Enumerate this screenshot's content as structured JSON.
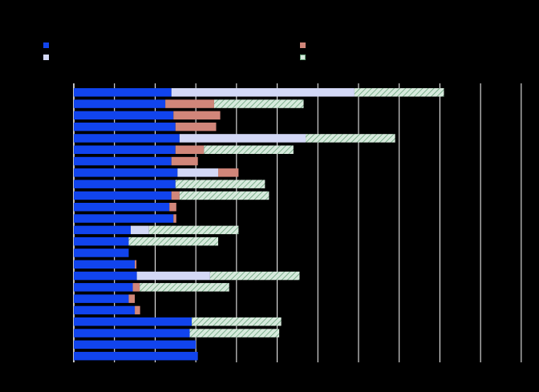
{
  "chart_data": {
    "type": "bar",
    "orientation": "horizontal",
    "stacked": true,
    "title": "",
    "xlabel": "",
    "ylabel": "",
    "grid": "vertical",
    "xlim": [
      0,
      11.2
    ],
    "gridlines": [
      0,
      1,
      2,
      3,
      4,
      5,
      6,
      7,
      8,
      9,
      10,
      11
    ],
    "categories": [
      "",
      "",
      "",
      "",
      "",
      "",
      "",
      "",
      "",
      "",
      "",
      "",
      "",
      "",
      "",
      "",
      "",
      "",
      "",
      "",
      "",
      "",
      "",
      "",
      ""
    ],
    "series": [
      {
        "color": "#1144ee",
        "pattern": "solid",
        "values": [
          2.4,
          2.25,
          2.45,
          2.5,
          2.6,
          2.5,
          2.4,
          2.55,
          2.5,
          2.4,
          2.35,
          2.45,
          1.4,
          1.35,
          1.35,
          1.5,
          1.55,
          1.45,
          1.35,
          1.5,
          2.9,
          2.85,
          3.0,
          3.05,
          0
        ]
      },
      {
        "color": "#d3d8f6",
        "pattern": "solid",
        "values": [
          4.5,
          0,
          0,
          0,
          3.1,
          0,
          0,
          1.0,
          0,
          0,
          0,
          0,
          0.45,
          0,
          0,
          0,
          1.8,
          0,
          0,
          0,
          0,
          0,
          0,
          0,
          0
        ]
      },
      {
        "color": "#d1867a",
        "pattern": "solid",
        "values": [
          0,
          1.2,
          1.15,
          1.0,
          0,
          0.7,
          0.65,
          0.5,
          0,
          0.2,
          0.17,
          0.07,
          0,
          0,
          0,
          0.04,
          0,
          0.17,
          0.15,
          0.13,
          0,
          0,
          0,
          0,
          0
        ]
      },
      {
        "color": "#d7eadd",
        "pattern": "hatch",
        "values": [
          2.2,
          2.2,
          0,
          0,
          2.2,
          2.2,
          0,
          0,
          2.2,
          2.2,
          0,
          0,
          2.2,
          2.2,
          0,
          0,
          2.2,
          2.2,
          0,
          0,
          2.2,
          2.2,
          0,
          0,
          0
        ]
      }
    ],
    "legend": [
      {
        "color": "#1144ee",
        "label": ""
      },
      {
        "color": "#d3d8f6",
        "label": ""
      },
      {
        "color": "#d1867a",
        "label": ""
      },
      {
        "color": "#d7eadd",
        "label": ""
      }
    ]
  }
}
